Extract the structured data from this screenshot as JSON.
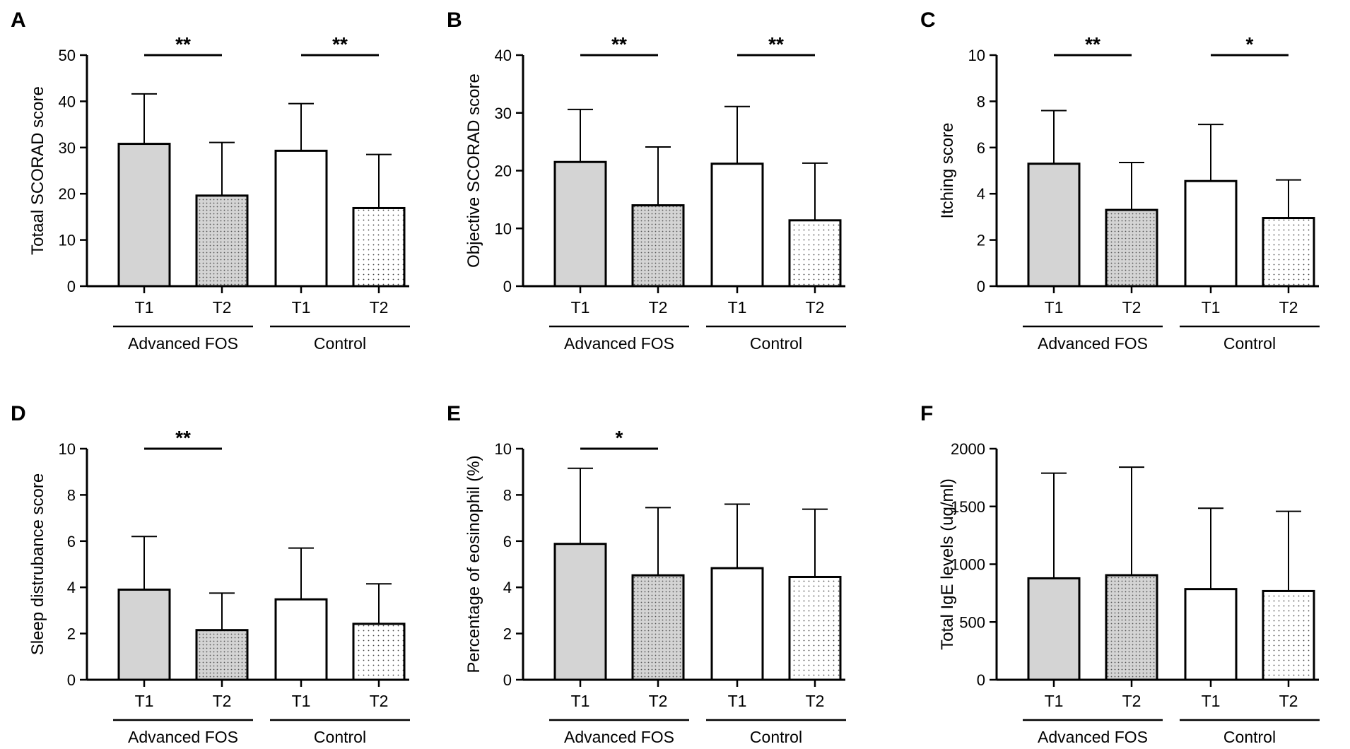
{
  "colors": {
    "grey_fill": "#d4d4d4",
    "white_fill": "#ffffff",
    "ink": "#000000"
  },
  "chart_data": [
    {
      "panel": "A",
      "type": "bar",
      "ylabel": "Totaal SCORAD score",
      "ylim": [
        0,
        50
      ],
      "yticks": [
        "0",
        "10",
        "20",
        "30",
        "40",
        "50"
      ],
      "categories": [
        "T1",
        "T2",
        "T1",
        "T2"
      ],
      "groups": [
        "Advanced FOS",
        "Control"
      ],
      "values": [
        30.8,
        19.6,
        29.3,
        16.9
      ],
      "errors": [
        10.8,
        11.5,
        10.2,
        11.6
      ],
      "significance": [
        "**",
        "**"
      ]
    },
    {
      "panel": "B",
      "type": "bar",
      "ylabel": "Objective SCORAD score",
      "ylim": [
        0,
        40
      ],
      "yticks": [
        "0",
        "10",
        "20",
        "30",
        "40"
      ],
      "categories": [
        "T1",
        "T2",
        "T1",
        "T2"
      ],
      "groups": [
        "Advanced FOS",
        "Control"
      ],
      "values": [
        21.5,
        14.0,
        21.2,
        11.4
      ],
      "errors": [
        9.1,
        10.1,
        9.9,
        9.9
      ],
      "significance": [
        "**",
        "**"
      ]
    },
    {
      "panel": "C",
      "type": "bar",
      "ylabel": "Itching score",
      "ylim": [
        0,
        10
      ],
      "yticks": [
        "0",
        "2",
        "4",
        "6",
        "8",
        "10"
      ],
      "categories": [
        "T1",
        "T2",
        "T1",
        "T2"
      ],
      "groups": [
        "Advanced FOS",
        "Control"
      ],
      "values": [
        5.3,
        3.3,
        4.55,
        2.95
      ],
      "errors": [
        2.3,
        2.05,
        2.45,
        1.65
      ],
      "significance": [
        "**",
        "*"
      ]
    },
    {
      "panel": "D",
      "type": "bar",
      "ylabel": "Sleep distrubance score",
      "ylim": [
        0,
        10
      ],
      "yticks": [
        "0",
        "2",
        "4",
        "6",
        "8",
        "10"
      ],
      "categories": [
        "T1",
        "T2",
        "T1",
        "T2"
      ],
      "groups": [
        "Advanced FOS",
        "Control"
      ],
      "values": [
        3.9,
        2.15,
        3.48,
        2.42
      ],
      "errors": [
        2.3,
        1.6,
        2.22,
        1.73
      ],
      "significance": [
        "**",
        ""
      ]
    },
    {
      "panel": "E",
      "type": "bar",
      "ylabel": "Percentage of eosinophil  (%)",
      "ylim": [
        0,
        10
      ],
      "yticks": [
        "0",
        "2",
        "4",
        "6",
        "8",
        "10"
      ],
      "categories": [
        "T1",
        "T2",
        "T1",
        "T2"
      ],
      "groups": [
        "Advanced FOS",
        "Control"
      ],
      "values": [
        5.88,
        4.52,
        4.83,
        4.45
      ],
      "errors": [
        3.27,
        2.93,
        2.77,
        2.93
      ],
      "significance": [
        "*",
        ""
      ]
    },
    {
      "panel": "F",
      "type": "bar",
      "ylabel": "Total IgE levels (ug/ml)",
      "ylim": [
        0,
        2000
      ],
      "yticks": [
        "0",
        "500",
        "1000",
        "1500",
        "2000"
      ],
      "categories": [
        "T1",
        "T2",
        "T1",
        "T2"
      ],
      "groups": [
        "Advanced FOS",
        "Control"
      ],
      "values": [
        878,
        905,
        785,
        768
      ],
      "errors": [
        910,
        935,
        700,
        690
      ],
      "significance": [
        "",
        ""
      ]
    }
  ]
}
